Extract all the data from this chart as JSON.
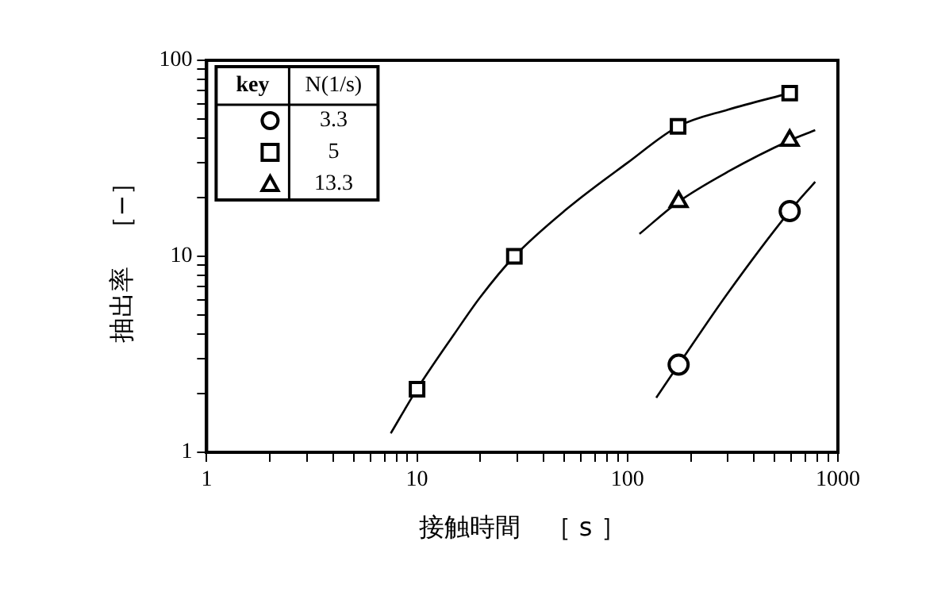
{
  "chart_data": {
    "type": "scatter",
    "xlabel": "接触時間　［ s ］",
    "ylabel": "抽出率　［−］",
    "legend_title": "N(1/s)",
    "annotations": [
      "key"
    ],
    "log": "xy",
    "grid": false,
    "legend": "top left",
    "xlim": [
      1,
      1000
    ],
    "ylim": [
      1,
      100
    ],
    "xticks": [
      1,
      {
        "value": 2,
        "label": null
      },
      {
        "value": 3,
        "label": null
      },
      {
        "value": 4,
        "label": null
      },
      {
        "value": 5,
        "label": null
      },
      {
        "value": 6,
        "label": null
      },
      {
        "value": 7,
        "label": null
      },
      {
        "value": 8,
        "label": null
      },
      {
        "value": 9,
        "label": null
      },
      10,
      {
        "value": 20,
        "label": null
      },
      {
        "value": 30,
        "label": null
      },
      {
        "value": 40,
        "label": null
      },
      {
        "value": 50,
        "label": null
      },
      {
        "value": 60,
        "label": null
      },
      {
        "value": 70,
        "label": null
      },
      {
        "value": 80,
        "label": null
      },
      {
        "value": 90,
        "label": null
      },
      100,
      {
        "value": 200,
        "label": null
      },
      {
        "value": 300,
        "label": null
      },
      {
        "value": 400,
        "label": null
      },
      {
        "value": 500,
        "label": null
      },
      {
        "value": 600,
        "label": null
      },
      {
        "value": 700,
        "label": null
      },
      {
        "value": 800,
        "label": null
      },
      {
        "value": 900,
        "label": null
      },
      1000
    ],
    "yticks": [
      1,
      {
        "value": 2,
        "label": null
      },
      {
        "value": 3,
        "label": null
      },
      {
        "value": 4,
        "label": null
      },
      {
        "value": 5,
        "label": null
      },
      {
        "value": 6,
        "label": null
      },
      {
        "value": 7,
        "label": null
      },
      {
        "value": 8,
        "label": null
      },
      {
        "value": 9,
        "label": null
      },
      10,
      {
        "value": 20,
        "label": null
      },
      {
        "value": 30,
        "label": null
      },
      {
        "value": 40,
        "label": null
      },
      {
        "value": 50,
        "label": null
      },
      {
        "value": 60,
        "label": null
      },
      {
        "value": 70,
        "label": null
      },
      {
        "value": 80,
        "label": null
      },
      {
        "value": 90,
        "label": null
      },
      100
    ],
    "series": [
      {
        "name": "3.3",
        "marker": "circle",
        "color": "#000000",
        "x": [
          175,
          590
        ],
        "values": [
          2.8,
          17
        ]
      },
      {
        "name": "5",
        "marker": "square",
        "color": "#000000",
        "x": [
          10,
          29,
          174,
          590
        ],
        "values": [
          2.1,
          10,
          46,
          68
        ]
      },
      {
        "name": "13.3",
        "marker": "triangle",
        "color": "#000000",
        "x": [
          175,
          590
        ],
        "values": [
          19,
          39
        ]
      },
      {
        "type": "line",
        "marker": "none",
        "color": "#000000",
        "x": [
          137,
          175,
          300,
          590,
          780
        ],
        "values": [
          1.9,
          2.8,
          6.5,
          17,
          24
        ]
      },
      {
        "type": "line",
        "marker": "none",
        "color": "#000000",
        "x": [
          7.5,
          10,
          15,
          20,
          29,
          50,
          100,
          174,
          300,
          590
        ],
        "values": [
          1.25,
          2.1,
          4,
          6.2,
          10,
          17,
          30,
          46,
          56,
          68
        ]
      },
      {
        "type": "line",
        "marker": "none",
        "color": "#000000",
        "x": [
          114,
          175,
          300,
          590,
          780
        ],
        "values": [
          13,
          19,
          27,
          39,
          44
        ]
      }
    ]
  }
}
